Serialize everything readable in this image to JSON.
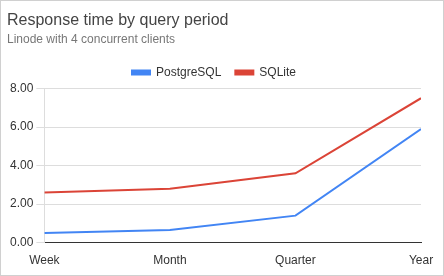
{
  "chart_data": {
    "type": "line",
    "title": "Response time by query period",
    "subtitle": "Linode with 4 concurrent clients",
    "categories": [
      "Week",
      "Month",
      "Quarter",
      "Year"
    ],
    "series": [
      {
        "name": "PostgreSQL",
        "color": "#4285f4",
        "values": [
          0.5,
          0.65,
          1.4,
          5.9
        ]
      },
      {
        "name": "SQLite",
        "color": "#db4437",
        "values": [
          2.6,
          2.8,
          3.6,
          7.5
        ]
      }
    ],
    "ylim": [
      0,
      8
    ],
    "yticks": [
      {
        "value": 0,
        "label": "0.00"
      },
      {
        "value": 2,
        "label": "2.00"
      },
      {
        "value": 4,
        "label": "4.00"
      },
      {
        "value": 6,
        "label": "6.00"
      },
      {
        "value": 8,
        "label": "8.00"
      }
    ],
    "grid": true,
    "legend": "top"
  }
}
